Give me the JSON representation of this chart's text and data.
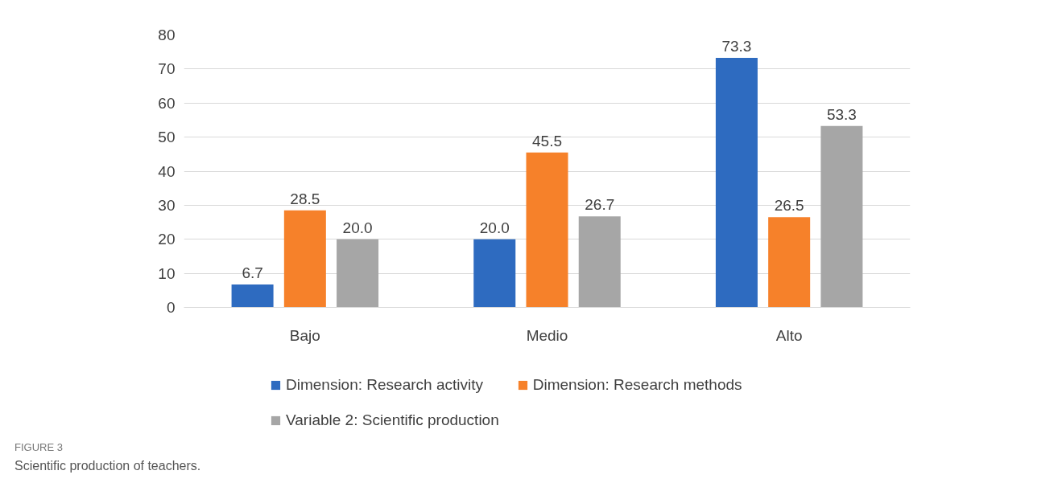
{
  "chart_data": {
    "type": "bar",
    "categories": [
      "Bajo",
      "Medio",
      "Alto"
    ],
    "series": [
      {
        "name": "Dimension: Research activity",
        "color": "#2e6bc0",
        "values": [
          6.7,
          20.0,
          73.3
        ],
        "value_labels": [
          "6.7",
          "20.0",
          "73.3"
        ]
      },
      {
        "name": "Dimension: Research methods",
        "color": "#f6812a",
        "values": [
          28.5,
          45.5,
          26.5
        ],
        "value_labels": [
          "28.5",
          "45.5",
          "26.5"
        ]
      },
      {
        "name": "Variable 2: Scientific production",
        "color": "#a6a6a6",
        "values": [
          20.0,
          26.7,
          53.3
        ],
        "value_labels": [
          "20.0",
          "26.7",
          "53.3"
        ]
      }
    ],
    "ylim": [
      0,
      80
    ],
    "yticks": [
      0,
      10,
      20,
      30,
      40,
      50,
      60,
      70,
      80
    ],
    "grid": "y",
    "legend": "bottom",
    "annotations": [
      "FIGURE 3",
      "Scientific production of teachers."
    ]
  }
}
